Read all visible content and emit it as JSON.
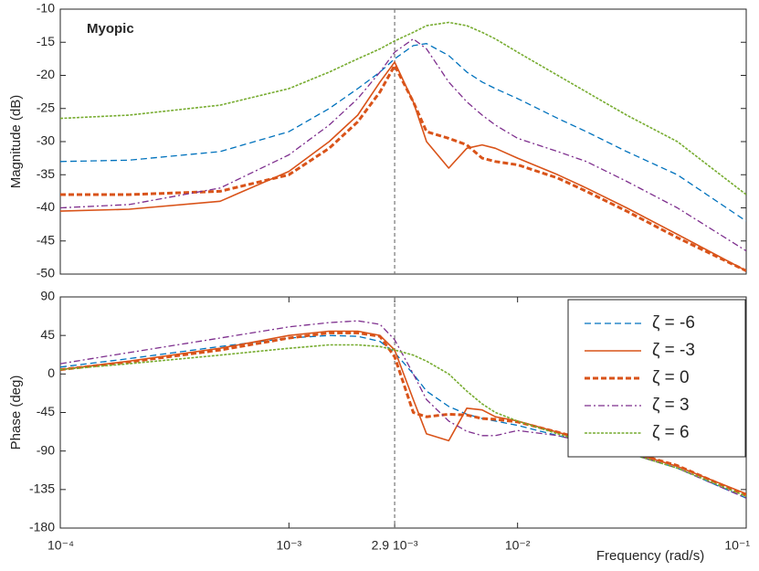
{
  "chart_data": [
    {
      "type": "line",
      "xscale": "log",
      "annotation": "Myopic",
      "ylabel": "Magnitude (dB)",
      "xlim": [
        0.0001,
        0.1
      ],
      "ylim": [
        -50,
        -10
      ],
      "yticks": [
        -10,
        -15,
        -20,
        -25,
        -30,
        -35,
        -40,
        -45,
        -50
      ],
      "vline": 0.0029,
      "grid": false,
      "x": [
        0.0001,
        0.0002,
        0.0005,
        0.001,
        0.0015,
        0.002,
        0.0025,
        0.0029,
        0.0035,
        0.004,
        0.005,
        0.006,
        0.007,
        0.008,
        0.01,
        0.015,
        0.02,
        0.03,
        0.05,
        0.1
      ],
      "series": [
        {
          "name": "ζ = -6",
          "color": "#0072bd",
          "style": "dashed",
          "values": [
            -33,
            -32.8,
            -31.5,
            -28.5,
            -25,
            -22,
            -19.5,
            -17.5,
            -15.5,
            -15.2,
            -17,
            -19.5,
            -21,
            -22,
            -23.5,
            -26.5,
            -28.5,
            -31.5,
            -35,
            -42
          ]
        },
        {
          "name": "ζ = -3",
          "color": "#d95319",
          "style": "solid",
          "values": [
            -40.5,
            -40.2,
            -39,
            -34.5,
            -30,
            -26,
            -21,
            -18,
            -24,
            -30,
            -34,
            -31,
            -30.5,
            -31,
            -32.5,
            -35,
            -37,
            -40,
            -44,
            -49.5
          ]
        },
        {
          "name": "ζ = 0",
          "color": "#d95319",
          "style": "thick-dashed",
          "values": [
            -38,
            -38,
            -37.5,
            -35,
            -31,
            -27,
            -22.5,
            -18.5,
            -24,
            -28.5,
            -29.5,
            -30.5,
            -32.5,
            -33,
            -33.5,
            -35.5,
            -37.5,
            -40.5,
            -44.5,
            -49.5
          ]
        },
        {
          "name": "ζ = 3",
          "color": "#7e2f8e",
          "style": "dash-dot",
          "values": [
            -40,
            -39.5,
            -37,
            -32,
            -27.5,
            -23.5,
            -19.5,
            -16.5,
            -14.5,
            -16,
            -21,
            -24,
            -26,
            -27.5,
            -29.5,
            -31.5,
            -33,
            -36,
            -40,
            -46.5
          ]
        },
        {
          "name": "ζ = 6",
          "color": "#77ac30",
          "style": "dotted",
          "values": [
            -26.5,
            -26,
            -24.5,
            -22,
            -19.5,
            -17.5,
            -16,
            -14.8,
            -13.5,
            -12.5,
            -12,
            -12.5,
            -13.5,
            -14.5,
            -16.5,
            -20,
            -22.5,
            -26,
            -30,
            -38
          ]
        }
      ]
    },
    {
      "type": "line",
      "xscale": "log",
      "ylabel": "Phase (deg)",
      "xlabel": "Frequency  (rad/s)",
      "xlim": [
        0.0001,
        0.1
      ],
      "ylim": [
        -180,
        90
      ],
      "yticks": [
        90,
        45,
        0,
        -45,
        -90,
        -135,
        -180
      ],
      "xticks": [
        {
          "value": 0.0001,
          "label": "10⁻⁴"
        },
        {
          "value": 0.001,
          "label": "10⁻³"
        },
        {
          "value": 0.0029,
          "label": "2.9 10⁻³"
        },
        {
          "value": 0.01,
          "label": "10⁻²"
        },
        {
          "value": 0.1,
          "label": "10⁻¹"
        }
      ],
      "vline": 0.0029,
      "grid": false,
      "legend": "upper right",
      "x": [
        0.0001,
        0.0002,
        0.0005,
        0.001,
        0.0015,
        0.002,
        0.0025,
        0.0029,
        0.0035,
        0.004,
        0.005,
        0.006,
        0.007,
        0.008,
        0.01,
        0.015,
        0.02,
        0.03,
        0.05,
        0.1
      ],
      "series": [
        {
          "name": "ζ = -6",
          "color": "#0072bd",
          "style": "dashed",
          "values": [
            8,
            18,
            32,
            42,
            45,
            44,
            38,
            25,
            0,
            -20,
            -38,
            -47,
            -52,
            -55,
            -60,
            -72,
            -80,
            -92,
            -110,
            -145
          ]
        },
        {
          "name": "ζ = -3",
          "color": "#d95319",
          "style": "solid",
          "values": [
            5,
            15,
            30,
            45,
            50,
            50,
            45,
            28,
            -30,
            -70,
            -78,
            -40,
            -42,
            -50,
            -55,
            -68,
            -78,
            -90,
            -108,
            -140
          ]
        },
        {
          "name": "ζ = 0",
          "color": "#d95319",
          "style": "thick-dashed",
          "values": [
            5,
            14,
            28,
            42,
            48,
            48,
            44,
            20,
            -45,
            -50,
            -47,
            -48,
            -52,
            -53,
            -56,
            -68,
            -77,
            -90,
            -107,
            -142
          ]
        },
        {
          "name": "ζ = 3",
          "color": "#7e2f8e",
          "style": "dash-dot",
          "values": [
            12,
            25,
            42,
            55,
            60,
            62,
            58,
            40,
            0,
            -30,
            -55,
            -67,
            -72,
            -72,
            -66,
            -72,
            -80,
            -92,
            -110,
            -145
          ]
        },
        {
          "name": "ζ = 6",
          "color": "#77ac30",
          "style": "dotted",
          "values": [
            5,
            12,
            22,
            30,
            34,
            34,
            32,
            28,
            22,
            15,
            0,
            -20,
            -35,
            -45,
            -55,
            -70,
            -80,
            -92,
            -110,
            -143
          ]
        }
      ]
    }
  ]
}
